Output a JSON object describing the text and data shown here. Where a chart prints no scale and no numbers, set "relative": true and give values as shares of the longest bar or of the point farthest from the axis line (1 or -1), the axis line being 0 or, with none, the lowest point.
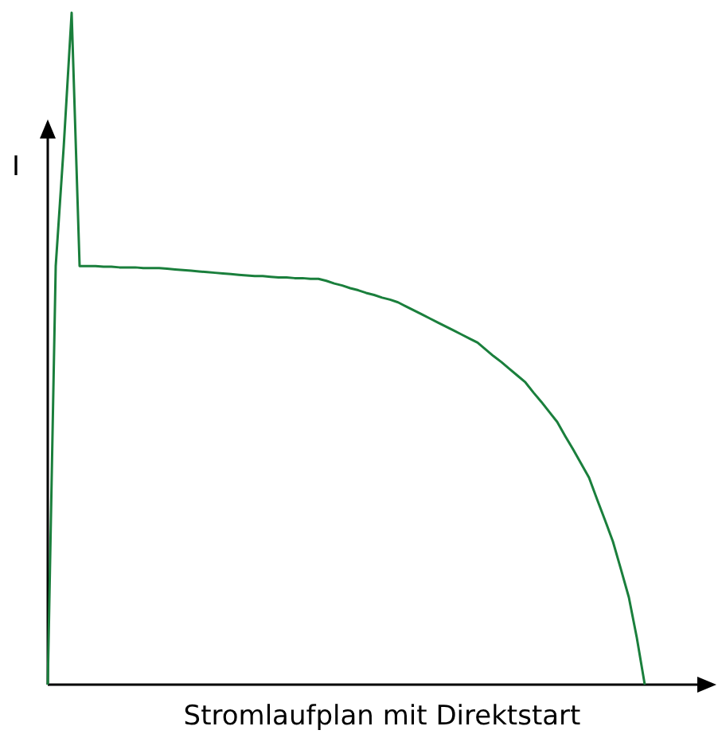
{
  "chart_data": {
    "type": "line",
    "relative": true,
    "xlabel": "Stromlaufplan mit Direktstart",
    "ylabel": "I",
    "line_style": "solid",
    "categories": [
      null,
      null,
      null,
      null,
      null,
      null,
      null,
      null,
      null,
      null,
      null,
      null,
      null,
      null,
      null,
      null,
      null,
      null,
      null,
      null,
      null,
      null,
      null,
      null,
      null,
      null,
      null,
      null,
      null,
      null,
      null,
      null,
      null,
      null,
      null,
      null,
      null,
      null,
      null,
      null,
      null,
      null,
      null,
      null,
      null,
      null,
      null,
      null,
      null,
      null,
      null,
      null,
      null,
      null,
      null,
      null,
      null,
      null,
      null,
      null,
      null,
      null,
      null,
      null,
      null,
      null,
      null,
      null,
      null,
      null,
      null,
      null,
      null,
      null,
      null,
      null
    ],
    "series": [
      {
        "color": "#1a7f3c",
        "values": [
          0,
          0.623,
          0.8,
          1,
          0.623,
          0.623,
          0.623,
          0.622,
          0.622,
          0.621,
          0.621,
          0.621,
          0.62,
          0.62,
          0.62,
          0.619,
          0.618,
          0.617,
          0.616,
          0.615,
          0.614,
          0.613,
          0.612,
          0.611,
          0.61,
          0.609,
          0.608,
          0.608,
          0.607,
          0.606,
          0.606,
          0.605,
          0.605,
          0.604,
          0.604,
          0.601,
          0.597,
          0.594,
          0.59,
          0.587,
          0.583,
          0.58,
          0.576,
          0.573,
          0.569,
          0.563,
          0.557,
          0.551,
          0.545,
          0.539,
          0.533,
          0.527,
          0.521,
          0.515,
          0.509,
          0.499,
          0.489,
          0.48,
          0.47,
          0.46,
          0.45,
          0.435,
          0.421,
          0.406,
          0.391,
          0.37,
          0.35,
          0.329,
          0.308,
          0.276,
          0.245,
          0.213,
          0.172,
          0.13,
          0.07,
          0
        ]
      }
    ]
  }
}
